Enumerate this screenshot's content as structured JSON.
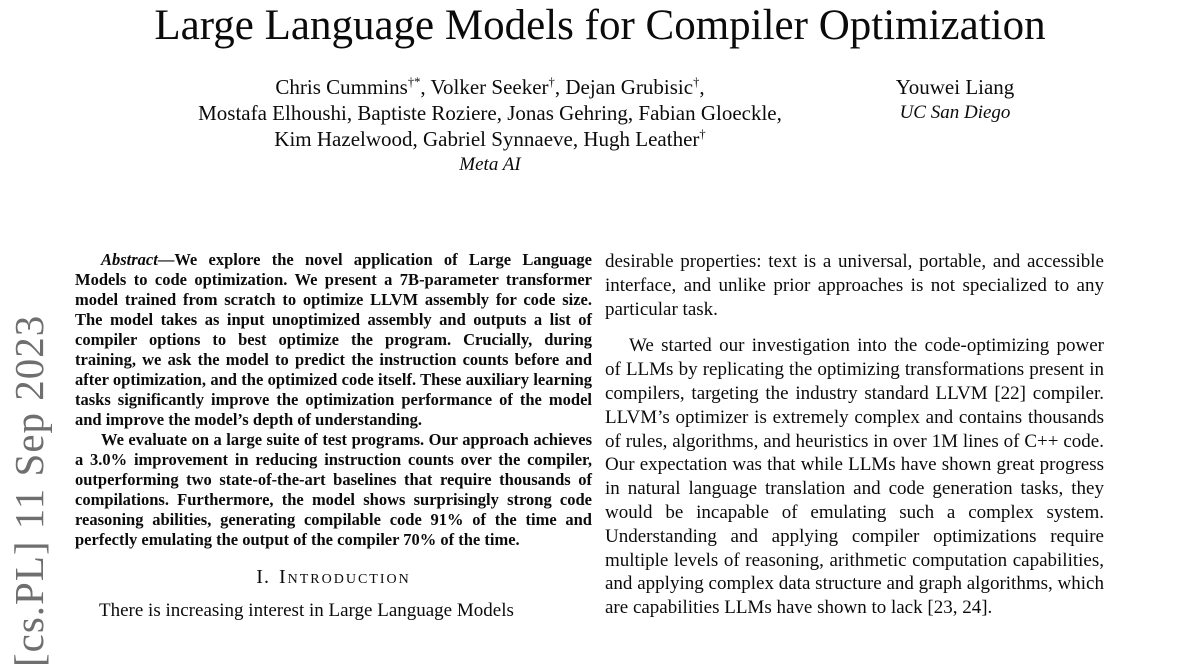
{
  "arxiv_stamp": {
    "text": "[cs.PL] 11 Sep 2023",
    "color": "#6f6f6f"
  },
  "title": "Large Language Models for Compiler Optimization",
  "authors": {
    "meta_group": {
      "lines": [
        {
          "segments": [
            {
              "t": "Chris Cummins"
            },
            {
              "sup": "†*"
            },
            {
              "t": ", Volker Seeker"
            },
            {
              "sup": "†"
            },
            {
              "t": ", Dejan Grubisic"
            },
            {
              "sup": "†"
            },
            {
              "t": ","
            }
          ]
        },
        {
          "segments": [
            {
              "t": "Mostafa Elhoushi, Baptiste Roziere, Jonas Gehring, Fabian Gloeckle,"
            }
          ]
        },
        {
          "segments": [
            {
              "t": "Kim Hazelwood, Gabriel Synnaeve, Hugh Leather"
            },
            {
              "sup": "†"
            }
          ]
        }
      ],
      "affiliation": "Meta AI"
    },
    "ucsd_group": {
      "name": "Youwei Liang",
      "affiliation": "UC San Diego"
    }
  },
  "abstract": {
    "lead": "Abstract",
    "dash": "—",
    "para1": "We explore the novel application of Large Language Models to code optimization. We present a 7B-parameter transformer model trained from scratch to optimize LLVM assembly for code size. The model takes as input unoptimized assembly and outputs a list of compiler options to best optimize the program. Crucially, during training, we ask the model to predict the instruction counts before and after optimization, and the optimized code itself. These auxiliary learning tasks significantly improve the optimization performance of the model and improve the model’s depth of understanding.",
    "para2": "We evaluate on a large suite of test programs. Our approach achieves a 3.0% improvement in reducing instruction counts over the compiler, outperforming two state-of-the-art baselines that require thousands of compilations. Furthermore, the model shows surprisingly strong code reasoning abilities, generating compilable code 91% of the time and perfectly emulating the output of the compiler 70% of the time."
  },
  "section1": {
    "number": "I.",
    "title": "Introduction"
  },
  "intro_first_line": "There is increasing interest in Large Language Models",
  "right_column": {
    "para1": "desirable properties: text is a universal, portable, and accessible interface, and unlike prior approaches is not specialized to any particular task.",
    "para2": "We started our investigation into the code-optimizing power of LLMs by replicating the optimizing transformations present in compilers, targeting the industry standard LLVM [22] compiler. LLVM’s optimizer is extremely complex and contains thousands of rules, algorithms, and heuristics in over 1M lines of C++ code. Our expectation was that while LLMs have shown great progress in natural language translation and code generation tasks, they would be incapable of emulating such a complex system. Understanding and applying compiler optimizations require multiple levels of reasoning, arithmetic computation capabilities, and applying complex data structure and graph algorithms, which are capabilities LLMs have shown to lack [23, 24]."
  }
}
